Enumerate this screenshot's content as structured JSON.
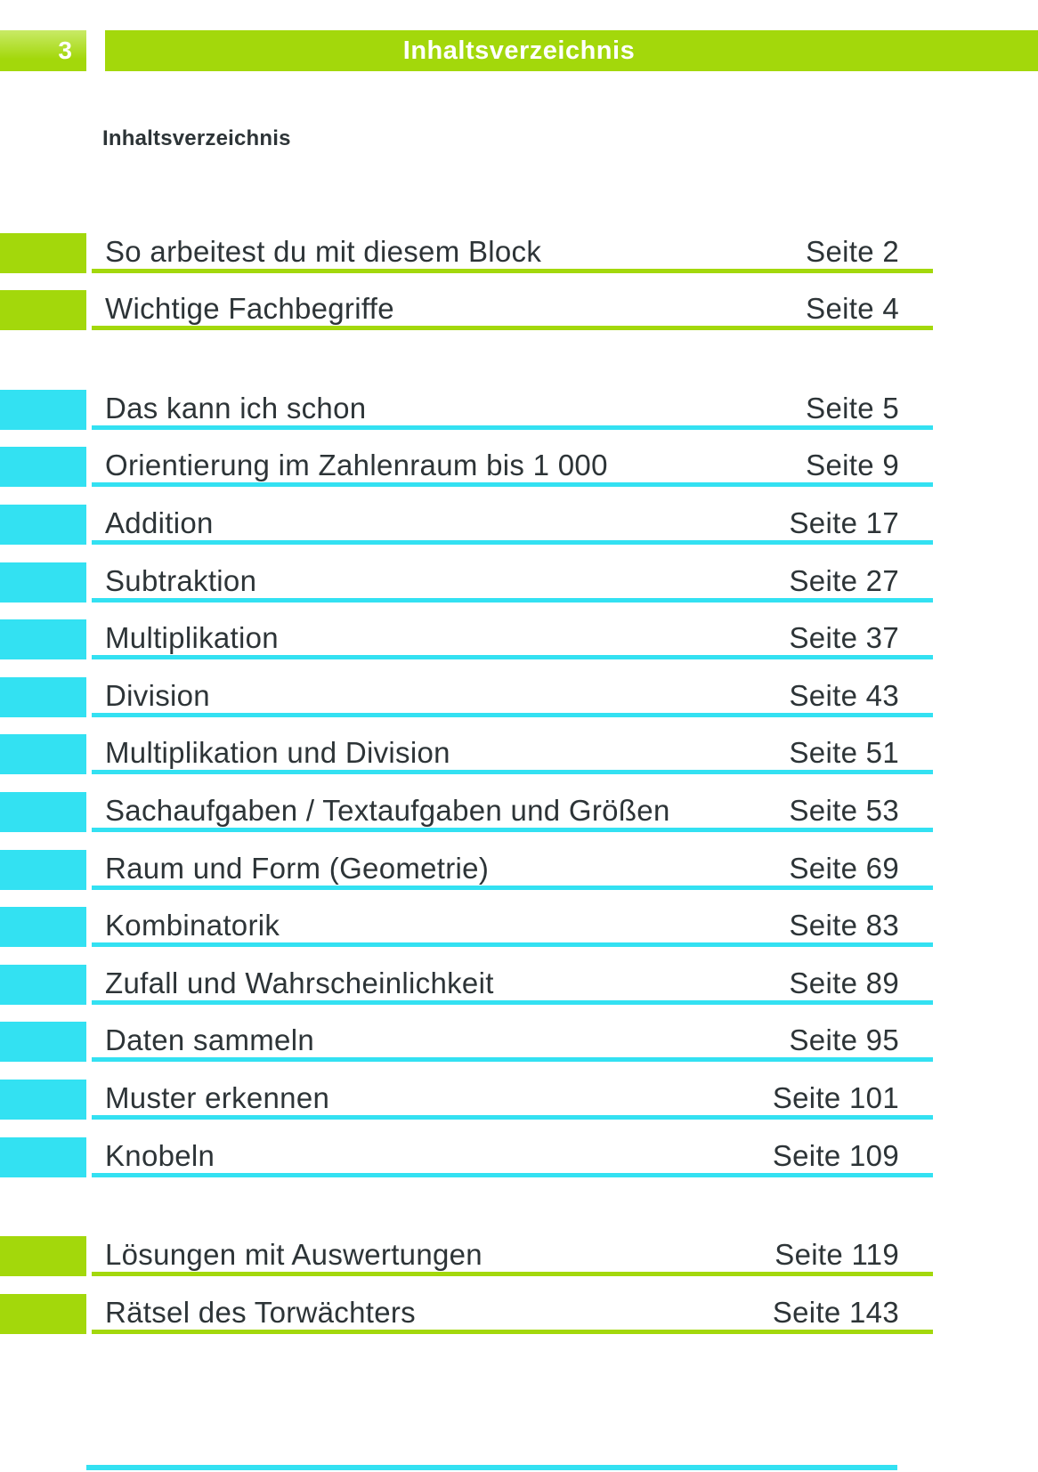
{
  "page": {
    "corner_page_number": "3",
    "banner_title": "Inhaltsverzeichnis",
    "heading": "Inhaltsverzeichnis"
  },
  "colors": {
    "green": "#a3d80b",
    "green_light": "#c9ea67",
    "cyan": "#33e1f2",
    "text_dark": "#2d3437"
  },
  "toc": {
    "entries": [
      {
        "title": "So arbeitest du mit diesem Block",
        "page_label": "Seite 2",
        "color": "green",
        "gap_before": false
      },
      {
        "title": "Wichtige Fachbegriffe",
        "page_label": "Seite 4",
        "color": "green",
        "gap_before": false
      },
      {
        "title": "Das kann ich schon",
        "page_label": "Seite 5",
        "color": "cyan",
        "gap_before": true
      },
      {
        "title": "Orientierung im Zahlenraum bis 1 000",
        "page_label": "Seite 9",
        "color": "cyan",
        "gap_before": false
      },
      {
        "title": "Addition",
        "page_label": "Seite 17",
        "color": "cyan",
        "gap_before": false
      },
      {
        "title": "Subtraktion",
        "page_label": "Seite 27",
        "color": "cyan",
        "gap_before": false
      },
      {
        "title": "Multiplikation",
        "page_label": "Seite 37",
        "color": "cyan",
        "gap_before": false
      },
      {
        "title": "Division",
        "page_label": "Seite 43",
        "color": "cyan",
        "gap_before": false
      },
      {
        "title": "Multiplikation und Division",
        "page_label": "Seite 51",
        "color": "cyan",
        "gap_before": false
      },
      {
        "title": "Sachaufgaben / Textaufgaben und Größen",
        "page_label": "Seite 53",
        "color": "cyan",
        "gap_before": false
      },
      {
        "title": "Raum und Form (Geometrie)",
        "page_label": "Seite 69",
        "color": "cyan",
        "gap_before": false
      },
      {
        "title": "Kombinatorik",
        "page_label": "Seite 83",
        "color": "cyan",
        "gap_before": false
      },
      {
        "title": "Zufall und Wahrscheinlichkeit",
        "page_label": "Seite 89",
        "color": "cyan",
        "gap_before": false
      },
      {
        "title": "Daten sammeln",
        "page_label": "Seite 95",
        "color": "cyan",
        "gap_before": false
      },
      {
        "title": "Muster erkennen",
        "page_label": "Seite 101",
        "color": "cyan",
        "gap_before": false
      },
      {
        "title": "Knobeln",
        "page_label": "Seite 109",
        "color": "cyan",
        "gap_before": false
      },
      {
        "title": "Lösungen mit Auswertungen",
        "page_label": "Seite 119",
        "color": "green",
        "gap_before": true
      },
      {
        "title": "Rätsel des Torwächters",
        "page_label": "Seite 143",
        "color": "green",
        "gap_before": false
      }
    ]
  }
}
